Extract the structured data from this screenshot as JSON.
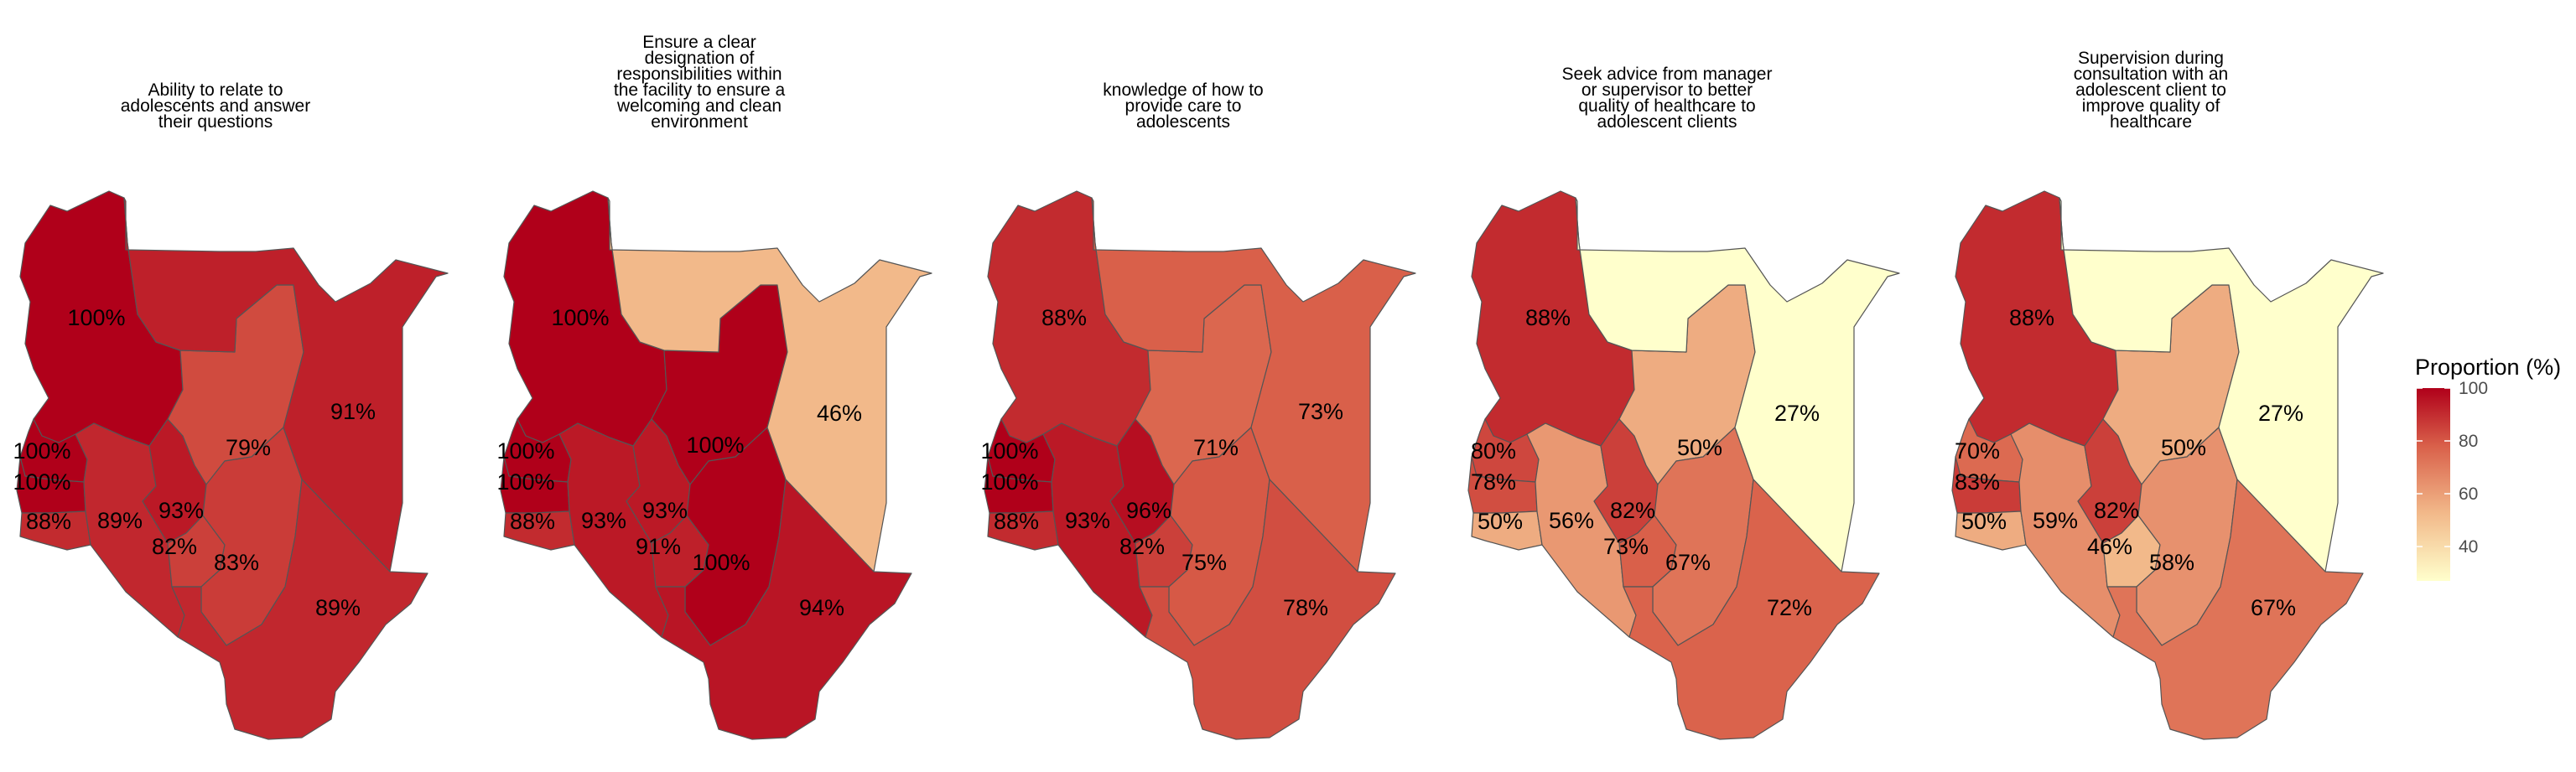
{
  "chart_data": {
    "type": "choropleth",
    "legend": {
      "title": "Proportion (%)",
      "ticks": [
        100,
        80,
        60,
        40
      ],
      "range": [
        27,
        100
      ],
      "colors": [
        "#ffffcc",
        "#f2b98a",
        "#d9604a",
        "#b0001a"
      ]
    },
    "panels": [
      {
        "title": [
          "Ability to relate to",
          "adolescents and answer",
          "their questions"
        ],
        "values": {
          "north_west": 100,
          "west1": 100,
          "west2": 100,
          "south_west": 88,
          "rift_south": 89,
          "central": 93,
          "central_south": 82,
          "east_central": 79,
          "south_east_inner": 83,
          "north_east": 91,
          "coast": 89
        },
        "labels": [
          "100%",
          "100%",
          "100%",
          "88%",
          "89%",
          "93%",
          "82%",
          "79%",
          "83%",
          "91%",
          "89%"
        ]
      },
      {
        "title": [
          "Ensure a clear",
          "designation of",
          "responsibilities within",
          "the facility to ensure a",
          "welcoming and clean",
          "environment"
        ],
        "values": {
          "north_west": 100,
          "west1": 100,
          "west2": 100,
          "south_west": 88,
          "rift_south": 93,
          "central": 93,
          "central_south": 91,
          "east_central": 100,
          "south_east_inner": 100,
          "north_east": 46,
          "coast": 94
        },
        "labels": [
          "100%",
          "100%",
          "100%",
          "88%",
          "93%",
          "93%",
          "91%",
          "100%",
          "100%",
          "46%",
          "94%"
        ]
      },
      {
        "title": [
          "knowledge of how to",
          "provide care to",
          "adolescents"
        ],
        "values": {
          "north_west": 88,
          "west1": 100,
          "west2": 100,
          "south_west": 88,
          "rift_south": 93,
          "central": 96,
          "central_south": 82,
          "east_central": 71,
          "south_east_inner": 75,
          "north_east": 73,
          "coast": 78
        },
        "labels": [
          "88%",
          "100%",
          "100%",
          "88%",
          "93%",
          "96%",
          "82%",
          "71%",
          "75%",
          "73%",
          "78%"
        ]
      },
      {
        "title": [
          "Seek advice from manager",
          "or supervisor to better",
          "quality of healthcare to",
          "adolescent clients"
        ],
        "values": {
          "north_west": 88,
          "west1": 80,
          "west2": 78,
          "south_west": 50,
          "rift_south": 56,
          "central": 82,
          "central_south": 73,
          "east_central": 50,
          "south_east_inner": 67,
          "north_east": 27,
          "coast": 72
        },
        "labels": [
          "88%",
          "80%",
          "78%",
          "50%",
          "56%",
          "82%",
          "73%",
          "50%",
          "67%",
          "27%",
          "72%"
        ]
      },
      {
        "title": [
          "Supervision during",
          "consultation with an",
          "adolescent client to",
          "improve quality of",
          "healthcare"
        ],
        "values": {
          "north_west": 88,
          "west1": 70,
          "west2": 83,
          "south_west": 50,
          "rift_south": 59,
          "central": 82,
          "central_south": 46,
          "east_central": 50,
          "south_east_inner": 58,
          "north_east": 27,
          "coast": 67
        },
        "labels": [
          "88%",
          "70%",
          "83%",
          "50%",
          "59%",
          "82%",
          "46%",
          "50%",
          "58%",
          "27%",
          "67%"
        ]
      }
    ]
  }
}
